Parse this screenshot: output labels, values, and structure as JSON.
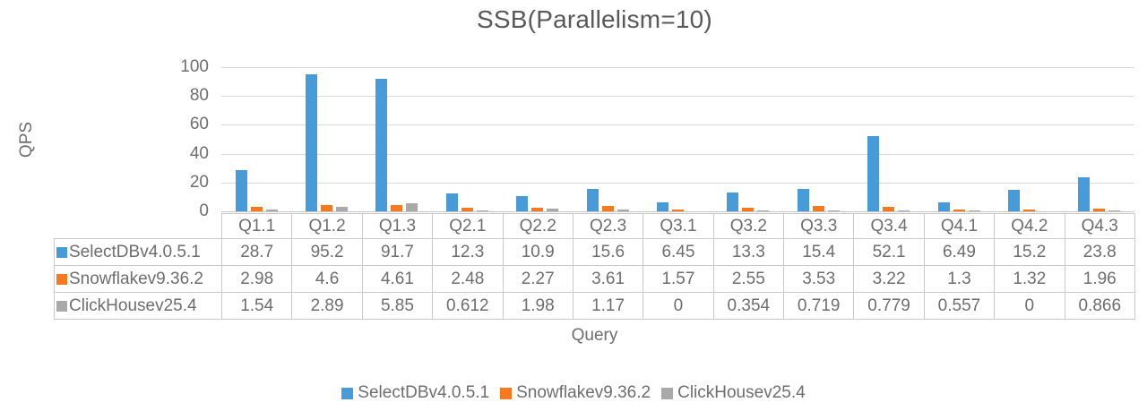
{
  "chart_data": {
    "type": "bar",
    "title": "SSB(Parallelism=10)",
    "xlabel": "Query",
    "ylabel": "QPS",
    "ylim": [
      0,
      100
    ],
    "yticks": [
      100,
      80,
      60,
      40,
      20,
      0
    ],
    "grid": true,
    "legend_position": "bottom",
    "categories": [
      "Q1.1",
      "Q1.2",
      "Q1.3",
      "Q2.1",
      "Q2.2",
      "Q2.3",
      "Q3.1",
      "Q3.2",
      "Q3.3",
      "Q3.4",
      "Q4.1",
      "Q4.2",
      "Q4.3"
    ],
    "series": [
      {
        "name": "SelectDBv4.0.5.1",
        "color": "#479BD9",
        "values": [
          28.7,
          95.2,
          91.7,
          12.3,
          10.9,
          15.6,
          6.45,
          13.3,
          15.4,
          52.1,
          6.49,
          15.2,
          23.8
        ]
      },
      {
        "name": "Snowflakev9.36.2",
        "color": "#F4791F",
        "values": [
          2.98,
          4.6,
          4.61,
          2.48,
          2.27,
          3.61,
          1.57,
          2.55,
          3.53,
          3.22,
          1.3,
          1.32,
          1.96
        ]
      },
      {
        "name": "ClickHousev25.4",
        "color": "#A9A9A9",
        "values": [
          1.54,
          2.89,
          5.85,
          0.612,
          1.98,
          1.17,
          0,
          0.354,
          0.719,
          0.779,
          0.557,
          0,
          0.866
        ]
      }
    ],
    "colors": {
      "gridline": "#DADADA",
      "axis_line": "#C6C6C6",
      "table_border": "#C9C9C9",
      "title_text": "#595959",
      "label_text": "#6E6E6E"
    }
  }
}
